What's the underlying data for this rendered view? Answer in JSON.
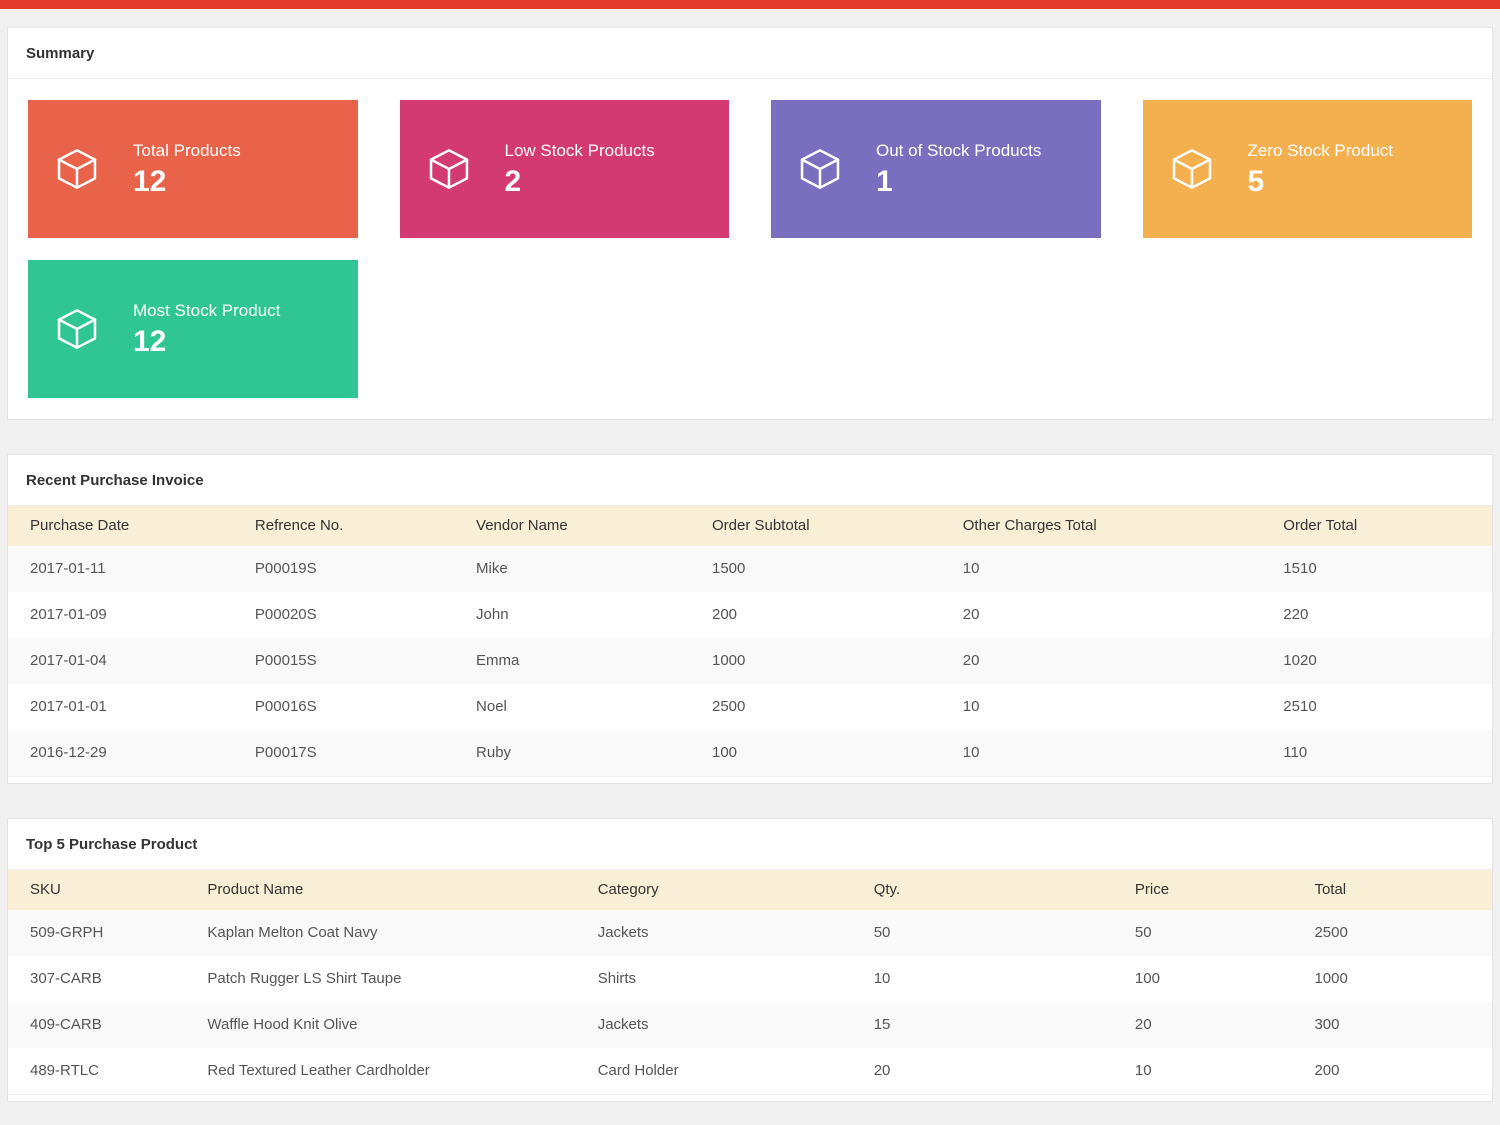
{
  "colors": {
    "topbar": "#e23b2b",
    "card_total": "#e8634a",
    "card_low_stock": "#d43a72",
    "card_out_of_stock": "#7a6fbe",
    "card_zero_stock": "#f4b04f",
    "card_most_stock": "#2fc693",
    "table_header_bg": "#f9efd6"
  },
  "summary": {
    "title": "Summary",
    "cards": [
      {
        "label": "Total Products",
        "value": "12",
        "color": "#e8634a",
        "icon": "cube-icon"
      },
      {
        "label": "Low Stock Products",
        "value": "2",
        "color": "#d43a72",
        "icon": "cube-icon"
      },
      {
        "label": "Out of Stock Products",
        "value": "1",
        "color": "#7a6fbe",
        "icon": "cube-icon"
      },
      {
        "label": "Zero Stock Product",
        "value": "5",
        "color": "#f4b04f",
        "icon": "cube-icon"
      },
      {
        "label": "Most Stock Product",
        "value": "12",
        "color": "#2fc693",
        "icon": "cube-icon"
      }
    ]
  },
  "recent_purchase_invoice": {
    "title": "Recent Purchase Invoice",
    "columns": [
      "Purchase Date",
      "Refrence No.",
      "Vendor Name",
      "Order Subtotal",
      "Other Charges Total",
      "Order Total"
    ],
    "rows": [
      [
        "2017-01-11",
        "P00019S",
        "Mike",
        "1500",
        "10",
        "1510"
      ],
      [
        "2017-01-09",
        "P00020S",
        "John",
        "200",
        "20",
        "220"
      ],
      [
        "2017-01-04",
        "P00015S",
        "Emma",
        "1000",
        "20",
        "1020"
      ],
      [
        "2017-01-01",
        "P00016S",
        "Noel",
        "2500",
        "10",
        "2510"
      ],
      [
        "2016-12-29",
        "P00017S",
        "Ruby",
        "100",
        "10",
        "110"
      ]
    ]
  },
  "top_purchase_product": {
    "title": "Top 5 Purchase Product",
    "columns": [
      "SKU",
      "Product Name",
      "Category",
      "Qty.",
      "Price",
      "Total"
    ],
    "rows": [
      [
        "509-GRPH",
        "Kaplan Melton Coat Navy",
        "Jackets",
        "50",
        "50",
        "2500"
      ],
      [
        "307-CARB",
        "Patch Rugger LS Shirt Taupe",
        "Shirts",
        "10",
        "100",
        "1000"
      ],
      [
        "409-CARB",
        "Waffle Hood Knit Olive",
        "Jackets",
        "15",
        "20",
        "300"
      ],
      [
        "489-RTLC",
        "Red Textured Leather Cardholder",
        "Card Holder",
        "20",
        "10",
        "200"
      ]
    ]
  }
}
